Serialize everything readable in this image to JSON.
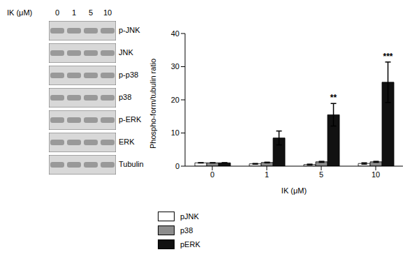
{
  "chart_data": {
    "type": "bar",
    "x_label": "IK (μM)",
    "y_label": "Phospho-form/tubulin ratio",
    "categories": [
      "0",
      "1",
      "5",
      "10"
    ],
    "ylim": [
      0,
      40
    ],
    "yticks": [
      0,
      10,
      20,
      30,
      40
    ],
    "grid": false,
    "legend": "bottom-left",
    "series": [
      {
        "name": "pJNK",
        "color": "#ffffff",
        "values": [
          1.0,
          0.7,
          0.5,
          0.8
        ],
        "errors": [
          0.05,
          0.1,
          0.1,
          0.2
        ]
      },
      {
        "name": "p38",
        "color": "#8c8c8c",
        "values": [
          1.0,
          1.1,
          1.3,
          1.3
        ],
        "errors": [
          0.05,
          0.1,
          0.15,
          0.15
        ]
      },
      {
        "name": "pERK",
        "color": "#111111",
        "values": [
          1.0,
          8.5,
          15.5,
          25.3
        ],
        "errors": [
          0.05,
          2.1,
          3.4,
          6.1
        ],
        "annotations": [
          null,
          null,
          "**",
          "***"
        ]
      }
    ]
  },
  "blot": {
    "treatment_label": "IK (μM)",
    "lanes": [
      "0",
      "1",
      "5",
      "10"
    ],
    "rows": [
      "p-JNK",
      "JNK",
      "p-p38",
      "p38",
      "p-ERK",
      "ERK",
      "Tubulin"
    ]
  }
}
